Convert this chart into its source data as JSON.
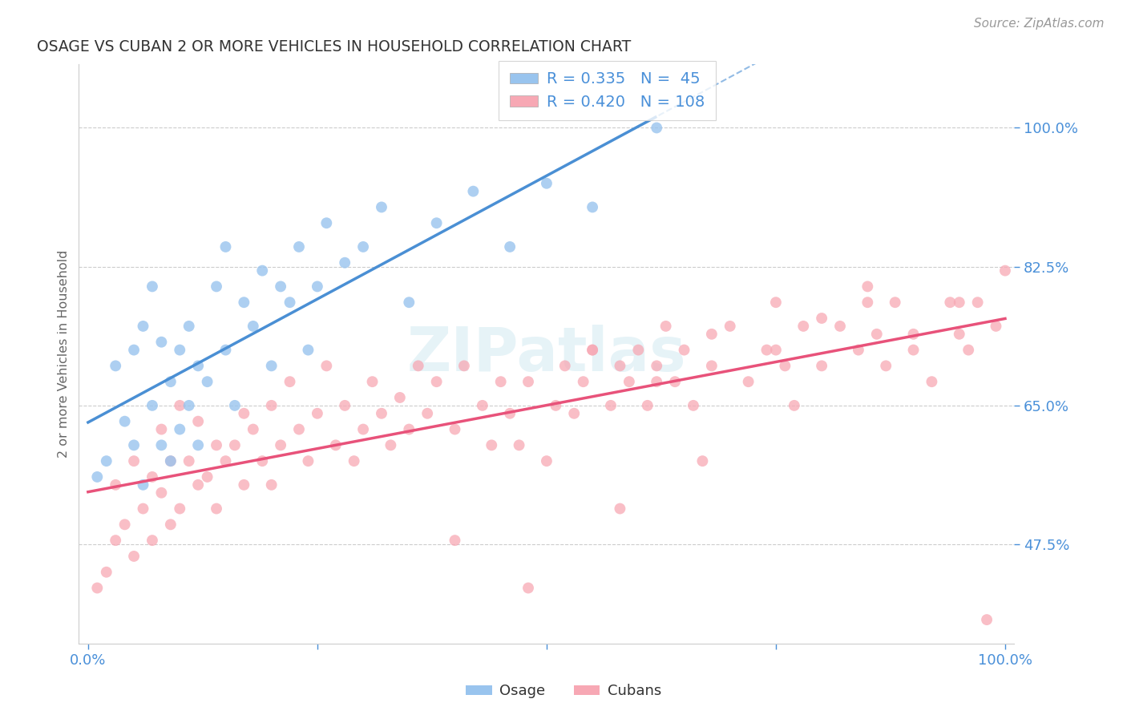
{
  "title": "OSAGE VS CUBAN 2 OR MORE VEHICLES IN HOUSEHOLD CORRELATION CHART",
  "source": "Source: ZipAtlas.com",
  "ylabel": "2 or more Vehicles in Household",
  "legend_r_osage": "R = 0.335",
  "legend_n_osage": "N =  45",
  "legend_r_cubans": "R = 0.420",
  "legend_n_cubans": "N = 108",
  "osage_color": "#99C4EE",
  "cuban_color": "#F7A8B4",
  "osage_line_color": "#4A8FD4",
  "cuban_line_color": "#E8527A",
  "watermark": "ZIPatlas",
  "background_color": "#FFFFFF",
  "grid_color": "#CCCCCC",
  "yticks": [
    47.5,
    65.0,
    82.5,
    100.0
  ],
  "ylim_low": 35,
  "ylim_high": 108,
  "xlim_low": -1,
  "xlim_high": 101,
  "osage_x": [
    1,
    2,
    3,
    4,
    5,
    5,
    6,
    6,
    7,
    7,
    8,
    8,
    9,
    9,
    10,
    10,
    11,
    11,
    12,
    12,
    13,
    14,
    15,
    15,
    16,
    17,
    18,
    19,
    20,
    21,
    22,
    23,
    24,
    25,
    26,
    28,
    30,
    32,
    35,
    38,
    42,
    46,
    50,
    55,
    62
  ],
  "osage_y": [
    56,
    58,
    70,
    63,
    60,
    72,
    55,
    75,
    65,
    80,
    60,
    73,
    58,
    68,
    62,
    72,
    65,
    75,
    60,
    70,
    68,
    80,
    72,
    85,
    65,
    78,
    75,
    82,
    70,
    80,
    78,
    85,
    72,
    80,
    88,
    83,
    85,
    90,
    78,
    88,
    92,
    85,
    93,
    90,
    100
  ],
  "cuban_x": [
    1,
    2,
    3,
    3,
    4,
    5,
    5,
    6,
    7,
    7,
    8,
    8,
    9,
    9,
    10,
    10,
    11,
    12,
    12,
    13,
    14,
    14,
    15,
    16,
    17,
    17,
    18,
    19,
    20,
    20,
    21,
    22,
    23,
    24,
    25,
    26,
    27,
    28,
    29,
    30,
    31,
    32,
    33,
    34,
    35,
    36,
    37,
    38,
    40,
    41,
    43,
    44,
    45,
    46,
    47,
    48,
    50,
    51,
    52,
    53,
    54,
    55,
    57,
    58,
    59,
    60,
    61,
    62,
    63,
    64,
    65,
    66,
    68,
    70,
    72,
    74,
    75,
    76,
    78,
    80,
    82,
    84,
    85,
    86,
    87,
    88,
    90,
    92,
    94,
    95,
    96,
    97,
    98,
    99,
    100,
    55,
    62,
    68,
    75,
    80,
    85,
    90,
    95,
    40,
    48,
    58,
    67,
    77
  ],
  "cuban_y": [
    42,
    44,
    55,
    48,
    50,
    46,
    58,
    52,
    56,
    48,
    54,
    62,
    50,
    58,
    52,
    65,
    58,
    55,
    63,
    56,
    60,
    52,
    58,
    60,
    64,
    55,
    62,
    58,
    65,
    55,
    60,
    68,
    62,
    58,
    64,
    70,
    60,
    65,
    58,
    62,
    68,
    64,
    60,
    66,
    62,
    70,
    64,
    68,
    62,
    70,
    65,
    60,
    68,
    64,
    60,
    68,
    58,
    65,
    70,
    64,
    68,
    72,
    65,
    70,
    68,
    72,
    65,
    70,
    75,
    68,
    72,
    65,
    70,
    75,
    68,
    72,
    78,
    70,
    75,
    70,
    75,
    72,
    78,
    74,
    70,
    78,
    72,
    68,
    78,
    74,
    72,
    78,
    38,
    75,
    82,
    72,
    68,
    74,
    72,
    76,
    80,
    74,
    78,
    48,
    42,
    52,
    58,
    65
  ],
  "osage_x_max": 62,
  "cuban_line_x0": 0,
  "cuban_line_x1": 100,
  "osage_line_x0": 0,
  "osage_line_x1": 100
}
